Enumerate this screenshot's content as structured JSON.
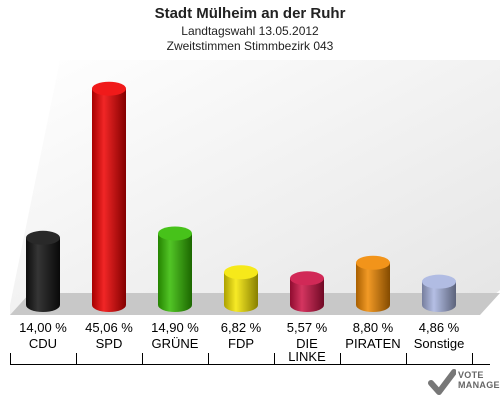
{
  "title": "Stadt Mülheim an der Ruhr",
  "subtitle1": "Landtagswahl 13.05.2012",
  "subtitle2": "Zweitstimmen Stimmbezirk 043",
  "watermark": {
    "line1": "VOTE",
    "line2": "MANAGER"
  },
  "chart_data": {
    "type": "bar",
    "categories": [
      "CDU",
      "SPD",
      "GRÜNE",
      "FDP",
      "DIE LINKE",
      "PIRATEN",
      "Sonstige"
    ],
    "value_labels": [
      "14,00 %",
      "45,06 %",
      "14,90 %",
      "6,82 %",
      "5,57 %",
      "8,80 %",
      "4,86 %"
    ],
    "values": [
      14.0,
      45.06,
      14.9,
      6.82,
      5.57,
      8.8,
      4.86
    ],
    "colors": [
      "#111111",
      "#ee0000",
      "#33bb00",
      "#f5e600",
      "#cc1144",
      "#f08800",
      "#a8b4e0"
    ],
    "ylim": [
      0,
      50
    ]
  }
}
